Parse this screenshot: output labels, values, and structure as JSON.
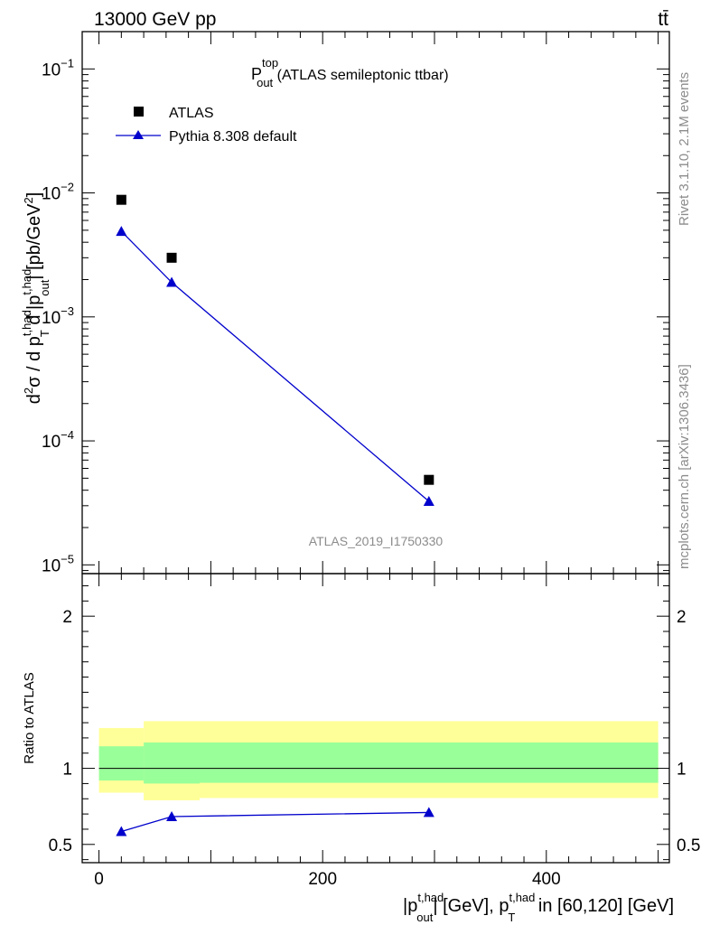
{
  "header": {
    "energy_label": "13000 GeV pp",
    "process_label": "tt̄"
  },
  "side_labels": {
    "rivet": "Rivet 3.1.10,  2.1M events",
    "mcplots": "mcplots.cern.ch [arXiv:1306.3436]"
  },
  "chart_data": [
    {
      "type": "scatter",
      "panel": "main",
      "title": "P_out^top (ATLAS semileptonic ttbar)",
      "title_parts": {
        "base": "P",
        "sup": "top",
        "sub": "out",
        "rest": " (ATLAS semileptonic ttbar)"
      },
      "ylabel": "d²σ / d p_T^{t,had} d |p_out^{t,had}| [pb/GeV²]",
      "y_scale": "log",
      "ylim": [
        8.5e-06,
        0.2
      ],
      "xlim": [
        -15,
        510
      ],
      "yticks": [
        {
          "value": 0.1,
          "base": "10",
          "exp": "−1"
        },
        {
          "value": 0.01,
          "base": "10",
          "exp": "−2"
        },
        {
          "value": 0.001,
          "base": "10",
          "exp": "−3"
        },
        {
          "value": 0.0001,
          "base": "10",
          "exp": "−4"
        },
        {
          "value": 1e-05,
          "base": "10",
          "exp": "−5"
        }
      ],
      "analysis_label": "ATLAS_2019_I1750330",
      "legend_position": "top-left",
      "series": [
        {
          "name": "ATLAS",
          "color": "#000000",
          "marker": "square",
          "x": [
            20,
            65,
            295
          ],
          "y": [
            0.0088,
            0.003,
            4.85e-05
          ]
        },
        {
          "name": "Pythia 8.308 default",
          "color": "#0000cc",
          "marker": "triangle",
          "line": true,
          "x": [
            20,
            65,
            295
          ],
          "y": [
            0.0049,
            0.0019,
            3.25e-05
          ]
        }
      ]
    },
    {
      "type": "line",
      "panel": "ratio",
      "ylabel": "Ratio to ATLAS",
      "xlabel": "|p_out^{t,had}| [GeV], p_T^{t,had} in [60,120] [GeV]",
      "ylim": [
        0.38,
        2.28
      ],
      "xlim": [
        -15,
        510
      ],
      "yticks": [
        0.5,
        1,
        2
      ],
      "xticks": [
        0,
        200,
        400
      ],
      "reference_line": 1,
      "bands": {
        "bins": [
          0,
          40,
          90,
          500
        ],
        "outer": {
          "color": "#ffff99",
          "low": [
            0.84,
            0.79,
            0.805
          ],
          "high": [
            1.265,
            1.31,
            1.31
          ]
        },
        "inner": {
          "color": "#99ff99",
          "low": [
            0.92,
            0.9,
            0.905
          ],
          "high": [
            1.145,
            1.17,
            1.17
          ]
        }
      },
      "series": [
        {
          "name": "Pythia 8.308 default",
          "color": "#0000cc",
          "marker": "triangle",
          "x": [
            20,
            65,
            295
          ],
          "y": [
            0.585,
            0.683,
            0.71
          ]
        }
      ]
    }
  ]
}
